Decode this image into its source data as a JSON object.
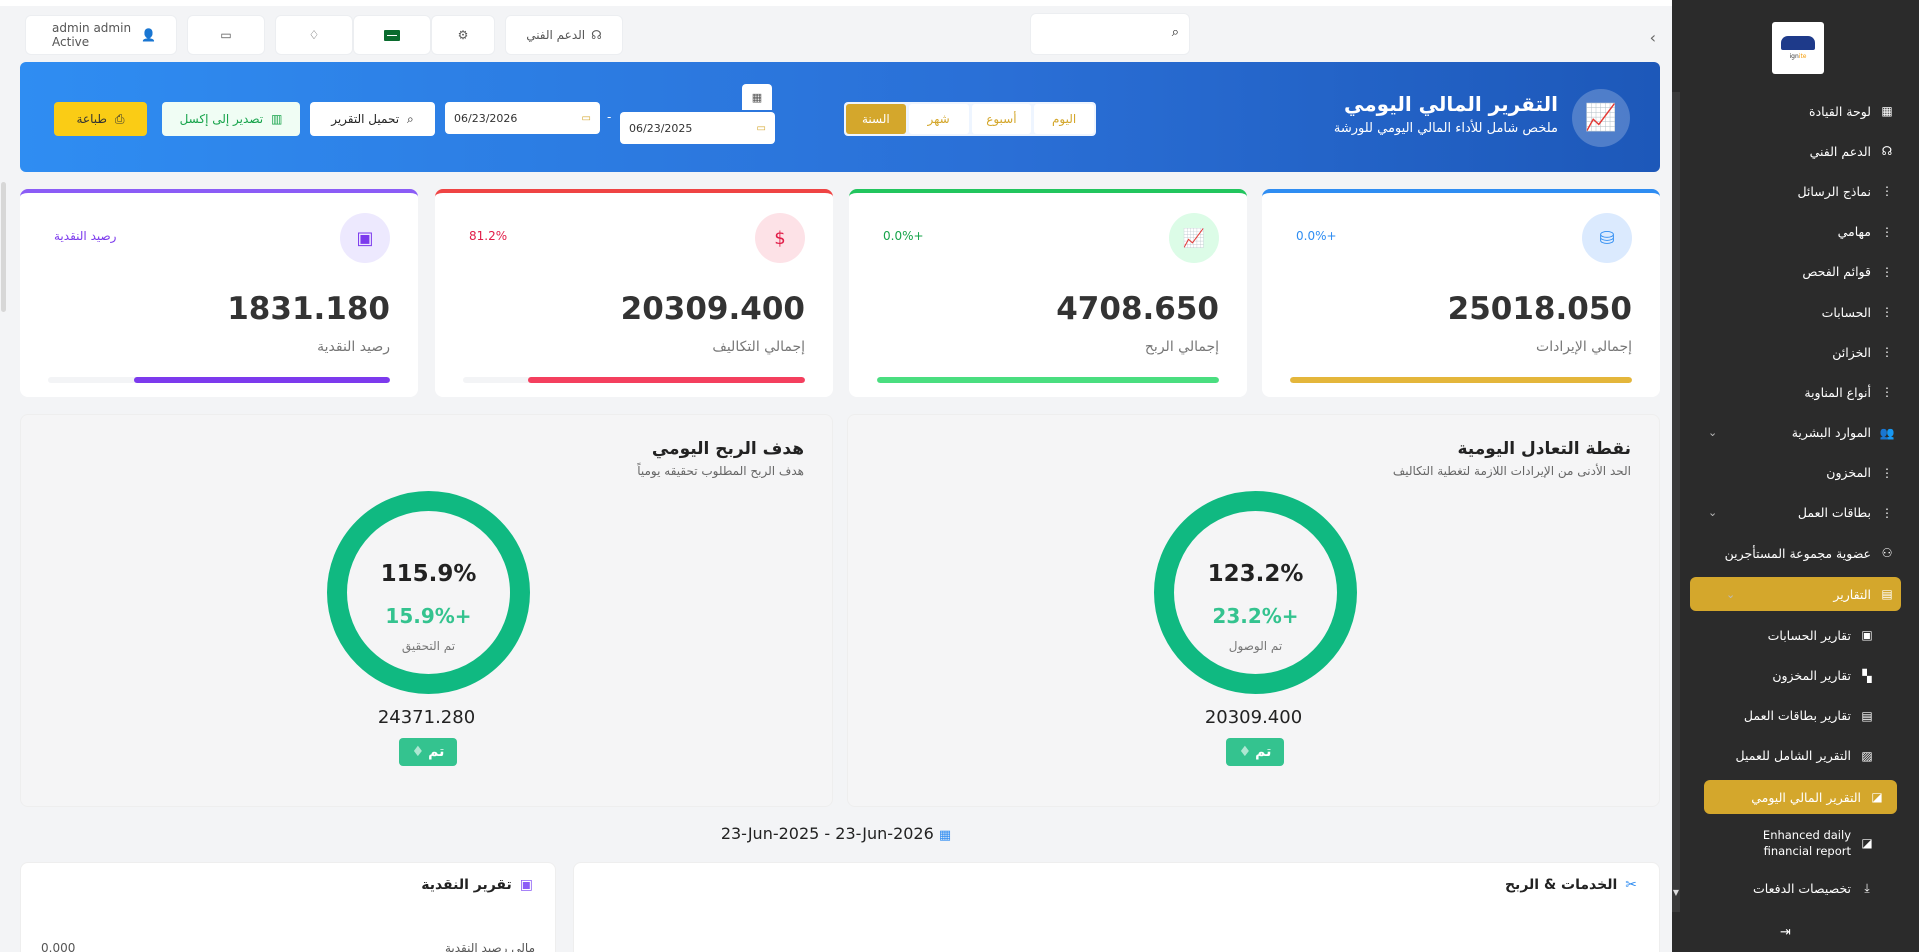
{
  "sidebar": {
    "logo_text_a": "ign",
    "logo_text_b": "ite",
    "items": [
      {
        "label": "لوحة القيادة",
        "icon": "▦"
      },
      {
        "label": "الدعم الفني",
        "icon": "☊"
      },
      {
        "label": "نماذج الرسائل",
        "icon": "⋮"
      },
      {
        "label": "مهامي",
        "icon": "⋮"
      },
      {
        "label": "قوائم الفحص",
        "icon": "⋮"
      },
      {
        "label": "الحسابات",
        "icon": "⋮"
      },
      {
        "label": "الخزائن",
        "icon": "⋮"
      },
      {
        "label": "أنواع المناوبة",
        "icon": "⋮"
      },
      {
        "label": "الموارد البشرية",
        "icon": "👥"
      },
      {
        "label": "المخزون",
        "icon": "⋮"
      },
      {
        "label": "بطاقات العمل",
        "icon": "⋮"
      },
      {
        "label": "عضوية مجموعة المستأجرين",
        "icon": "⚇"
      },
      {
        "label": "التقارير",
        "icon": "▤"
      },
      {
        "label": "تقارير الحسابات",
        "icon": "▣"
      },
      {
        "label": "تقارير المخزون",
        "icon": "▚"
      },
      {
        "label": "تقارير بطاقات العمل",
        "icon": "▤"
      },
      {
        "label": "التقرير الشامل للعميل",
        "icon": "▨"
      },
      {
        "label": "التقرير المالي اليومي",
        "icon": "◪"
      },
      {
        "label": "Enhanced daily financial report",
        "icon": "◪"
      },
      {
        "label": "تخصيصات الدفعات",
        "icon": "⤓"
      }
    ],
    "logout_icon": "⇥"
  },
  "topbar": {
    "search_placeholder": "",
    "support_label": "الدعم الفني",
    "user_name": "admin admin",
    "user_status": "Active"
  },
  "header": {
    "title": "التقرير المالي اليومي",
    "subtitle": "ملخص شامل للأداء المالي اليومي للورشة",
    "periods": [
      "اليوم",
      "أسبوع",
      "شهر",
      "السنة"
    ],
    "active_period": "السنة",
    "date_from": "06/23/2025",
    "date_to": "06/23/2026",
    "date_dash": "-",
    "load_label": "تحميل التقرير",
    "excel_label": "تصدير إلى إكسل",
    "print_label": "طباعة"
  },
  "stats": [
    {
      "value": "25018.050",
      "label": "إجمالي الإيرادات",
      "badge": "0.0%+",
      "color": "#2f8df2",
      "bar_color": "#e4b63b",
      "bar_fill": 1.0,
      "icon_bg": "#dbeafe",
      "icon_color": "#2f8df2",
      "icon": "⛁"
    },
    {
      "value": "4708.650",
      "label": "إجمالي الربح",
      "badge": "0.0%+",
      "color": "#22c55e",
      "bar_color": "#4ade80",
      "bar_fill": 1.0,
      "icon_bg": "#dcfce7",
      "icon_color": "#16a34a",
      "icon": "📈"
    },
    {
      "value": "20309.400",
      "label": "إجمالي التكاليف",
      "badge": "81.2%",
      "color": "#ef4444",
      "bar_color": "#f43f5e",
      "bar_fill": 0.81,
      "icon_bg": "#fde2e7",
      "icon_color": "#e11d48",
      "icon": "$"
    },
    {
      "value": "1831.180",
      "label": "رصيد النقدية",
      "badge": "رصيد النقدية",
      "color": "#8b5cf6",
      "bar_color": "#7c3aed",
      "bar_fill": 0.75,
      "icon_bg": "#ede9fe",
      "icon_color": "#7c3aed",
      "icon": "▣"
    }
  ],
  "gauges": [
    {
      "title": "نقطة التعادل اليومية",
      "subtitle": "الحد الأدنى من الإيرادات اللازمة لتغطية التكاليف",
      "pct": "123.2%",
      "extra": "23.2%+",
      "label": "تم الوصول",
      "amount": "20309.400",
      "pill": "تم"
    },
    {
      "title": "هدف الربح اليومي",
      "subtitle": "هدف الربح المطلوب تحقيقه يومياً",
      "pct": "115.9%",
      "extra": "15.9%+",
      "label": "تم التحقيق",
      "amount": "24371.280",
      "pill": "تم"
    }
  ],
  "range_label": "23-Jun-2025 - 23-Jun-2026",
  "bottom": {
    "services_title": "الخدمات & الربح",
    "cash_title": "تقرير النقدية",
    "cash_row_label": "مالي رصيد النقدية",
    "cash_row_value": "0.000"
  }
}
